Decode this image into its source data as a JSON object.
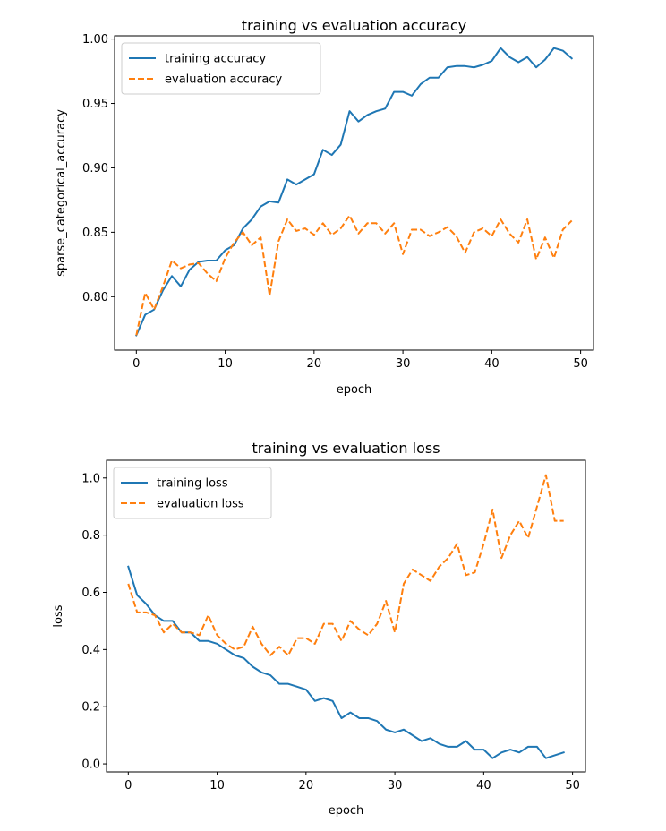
{
  "chart_data": [
    {
      "type": "line",
      "title": "training vs evaluation accuracy",
      "xlabel": "epoch",
      "ylabel": "sparse_categorical_accuracy",
      "xlim": [
        -2.45,
        51.45
      ],
      "ylim": [
        0.7585,
        1.0025
      ],
      "xticks": [
        0,
        10,
        20,
        30,
        40,
        50
      ],
      "yticks": [
        0.8,
        0.85,
        0.9,
        0.95,
        1.0
      ],
      "ytick_labels": [
        "0.80",
        "0.85",
        "0.90",
        "0.95",
        "1.00"
      ],
      "legend_position": "upper left",
      "grid": false,
      "x": [
        0,
        1,
        2,
        3,
        4,
        5,
        6,
        7,
        8,
        9,
        10,
        11,
        12,
        13,
        14,
        15,
        16,
        17,
        18,
        19,
        20,
        21,
        22,
        23,
        24,
        25,
        26,
        27,
        28,
        29,
        30,
        31,
        32,
        33,
        34,
        35,
        36,
        37,
        38,
        39,
        40,
        41,
        42,
        43,
        44,
        45,
        46,
        47,
        48,
        49
      ],
      "series": [
        {
          "name": "training accuracy",
          "color": "#1f77b4",
          "style": "solid",
          "values": [
            0.77,
            0.786,
            0.79,
            0.805,
            0.816,
            0.808,
            0.821,
            0.827,
            0.828,
            0.828,
            0.836,
            0.84,
            0.853,
            0.86,
            0.87,
            0.874,
            0.873,
            0.891,
            0.887,
            0.891,
            0.895,
            0.914,
            0.91,
            0.918,
            0.944,
            0.936,
            0.941,
            0.944,
            0.946,
            0.959,
            0.959,
            0.956,
            0.965,
            0.97,
            0.97,
            0.978,
            0.979,
            0.979,
            0.978,
            0.98,
            0.983,
            0.993,
            0.986,
            0.982,
            0.986,
            0.978,
            0.984,
            0.993,
            0.991,
            0.985
          ]
        },
        {
          "name": "evaluation accuracy",
          "color": "#ff7f0e",
          "style": "dashed",
          "values": [
            0.77,
            0.803,
            0.79,
            0.808,
            0.828,
            0.822,
            0.825,
            0.826,
            0.818,
            0.812,
            0.83,
            0.842,
            0.85,
            0.84,
            0.846,
            0.801,
            0.843,
            0.86,
            0.851,
            0.853,
            0.848,
            0.857,
            0.848,
            0.853,
            0.863,
            0.849,
            0.857,
            0.857,
            0.849,
            0.857,
            0.833,
            0.852,
            0.852,
            0.847,
            0.85,
            0.854,
            0.847,
            0.834,
            0.85,
            0.853,
            0.847,
            0.86,
            0.849,
            0.842,
            0.86,
            0.829,
            0.846,
            0.83,
            0.852,
            0.859
          ]
        }
      ]
    },
    {
      "type": "line",
      "title": "training vs evaluation loss",
      "xlabel": "epoch",
      "ylabel": "loss",
      "xlim": [
        -2.45,
        51.45
      ],
      "ylim": [
        -0.028,
        1.062
      ],
      "xticks": [
        0,
        10,
        20,
        30,
        40,
        50
      ],
      "yticks": [
        0.0,
        0.2,
        0.4,
        0.6,
        0.8,
        1.0
      ],
      "ytick_labels": [
        "0.0",
        "0.2",
        "0.4",
        "0.6",
        "0.8",
        "1.0"
      ],
      "legend_position": "upper left",
      "grid": false,
      "x": [
        0,
        1,
        2,
        3,
        4,
        5,
        6,
        7,
        8,
        9,
        10,
        11,
        12,
        13,
        14,
        15,
        16,
        17,
        18,
        19,
        20,
        21,
        22,
        23,
        24,
        25,
        26,
        27,
        28,
        29,
        30,
        31,
        32,
        33,
        34,
        35,
        36,
        37,
        38,
        39,
        40,
        41,
        42,
        43,
        44,
        45,
        46,
        47,
        48,
        49
      ],
      "series": [
        {
          "name": "training loss",
          "color": "#1f77b4",
          "style": "solid",
          "values": [
            0.69,
            0.59,
            0.56,
            0.52,
            0.5,
            0.5,
            0.46,
            0.46,
            0.43,
            0.43,
            0.42,
            0.4,
            0.38,
            0.37,
            0.34,
            0.32,
            0.31,
            0.28,
            0.28,
            0.27,
            0.26,
            0.22,
            0.23,
            0.22,
            0.16,
            0.18,
            0.16,
            0.16,
            0.15,
            0.12,
            0.11,
            0.12,
            0.1,
            0.08,
            0.09,
            0.07,
            0.06,
            0.06,
            0.08,
            0.05,
            0.05,
            0.02,
            0.04,
            0.05,
            0.04,
            0.06,
            0.06,
            0.02,
            0.03,
            0.04
          ]
        },
        {
          "name": "evaluation loss",
          "color": "#ff7f0e",
          "style": "dashed",
          "values": [
            0.63,
            0.53,
            0.53,
            0.52,
            0.46,
            0.49,
            0.46,
            0.46,
            0.45,
            0.52,
            0.45,
            0.42,
            0.4,
            0.41,
            0.48,
            0.42,
            0.38,
            0.41,
            0.38,
            0.44,
            0.44,
            0.42,
            0.49,
            0.49,
            0.43,
            0.5,
            0.47,
            0.45,
            0.49,
            0.57,
            0.46,
            0.63,
            0.68,
            0.66,
            0.64,
            0.69,
            0.72,
            0.77,
            0.66,
            0.67,
            0.77,
            0.89,
            0.72,
            0.8,
            0.85,
            0.79,
            0.9,
            1.01,
            0.85,
            0.85
          ]
        }
      ]
    }
  ]
}
